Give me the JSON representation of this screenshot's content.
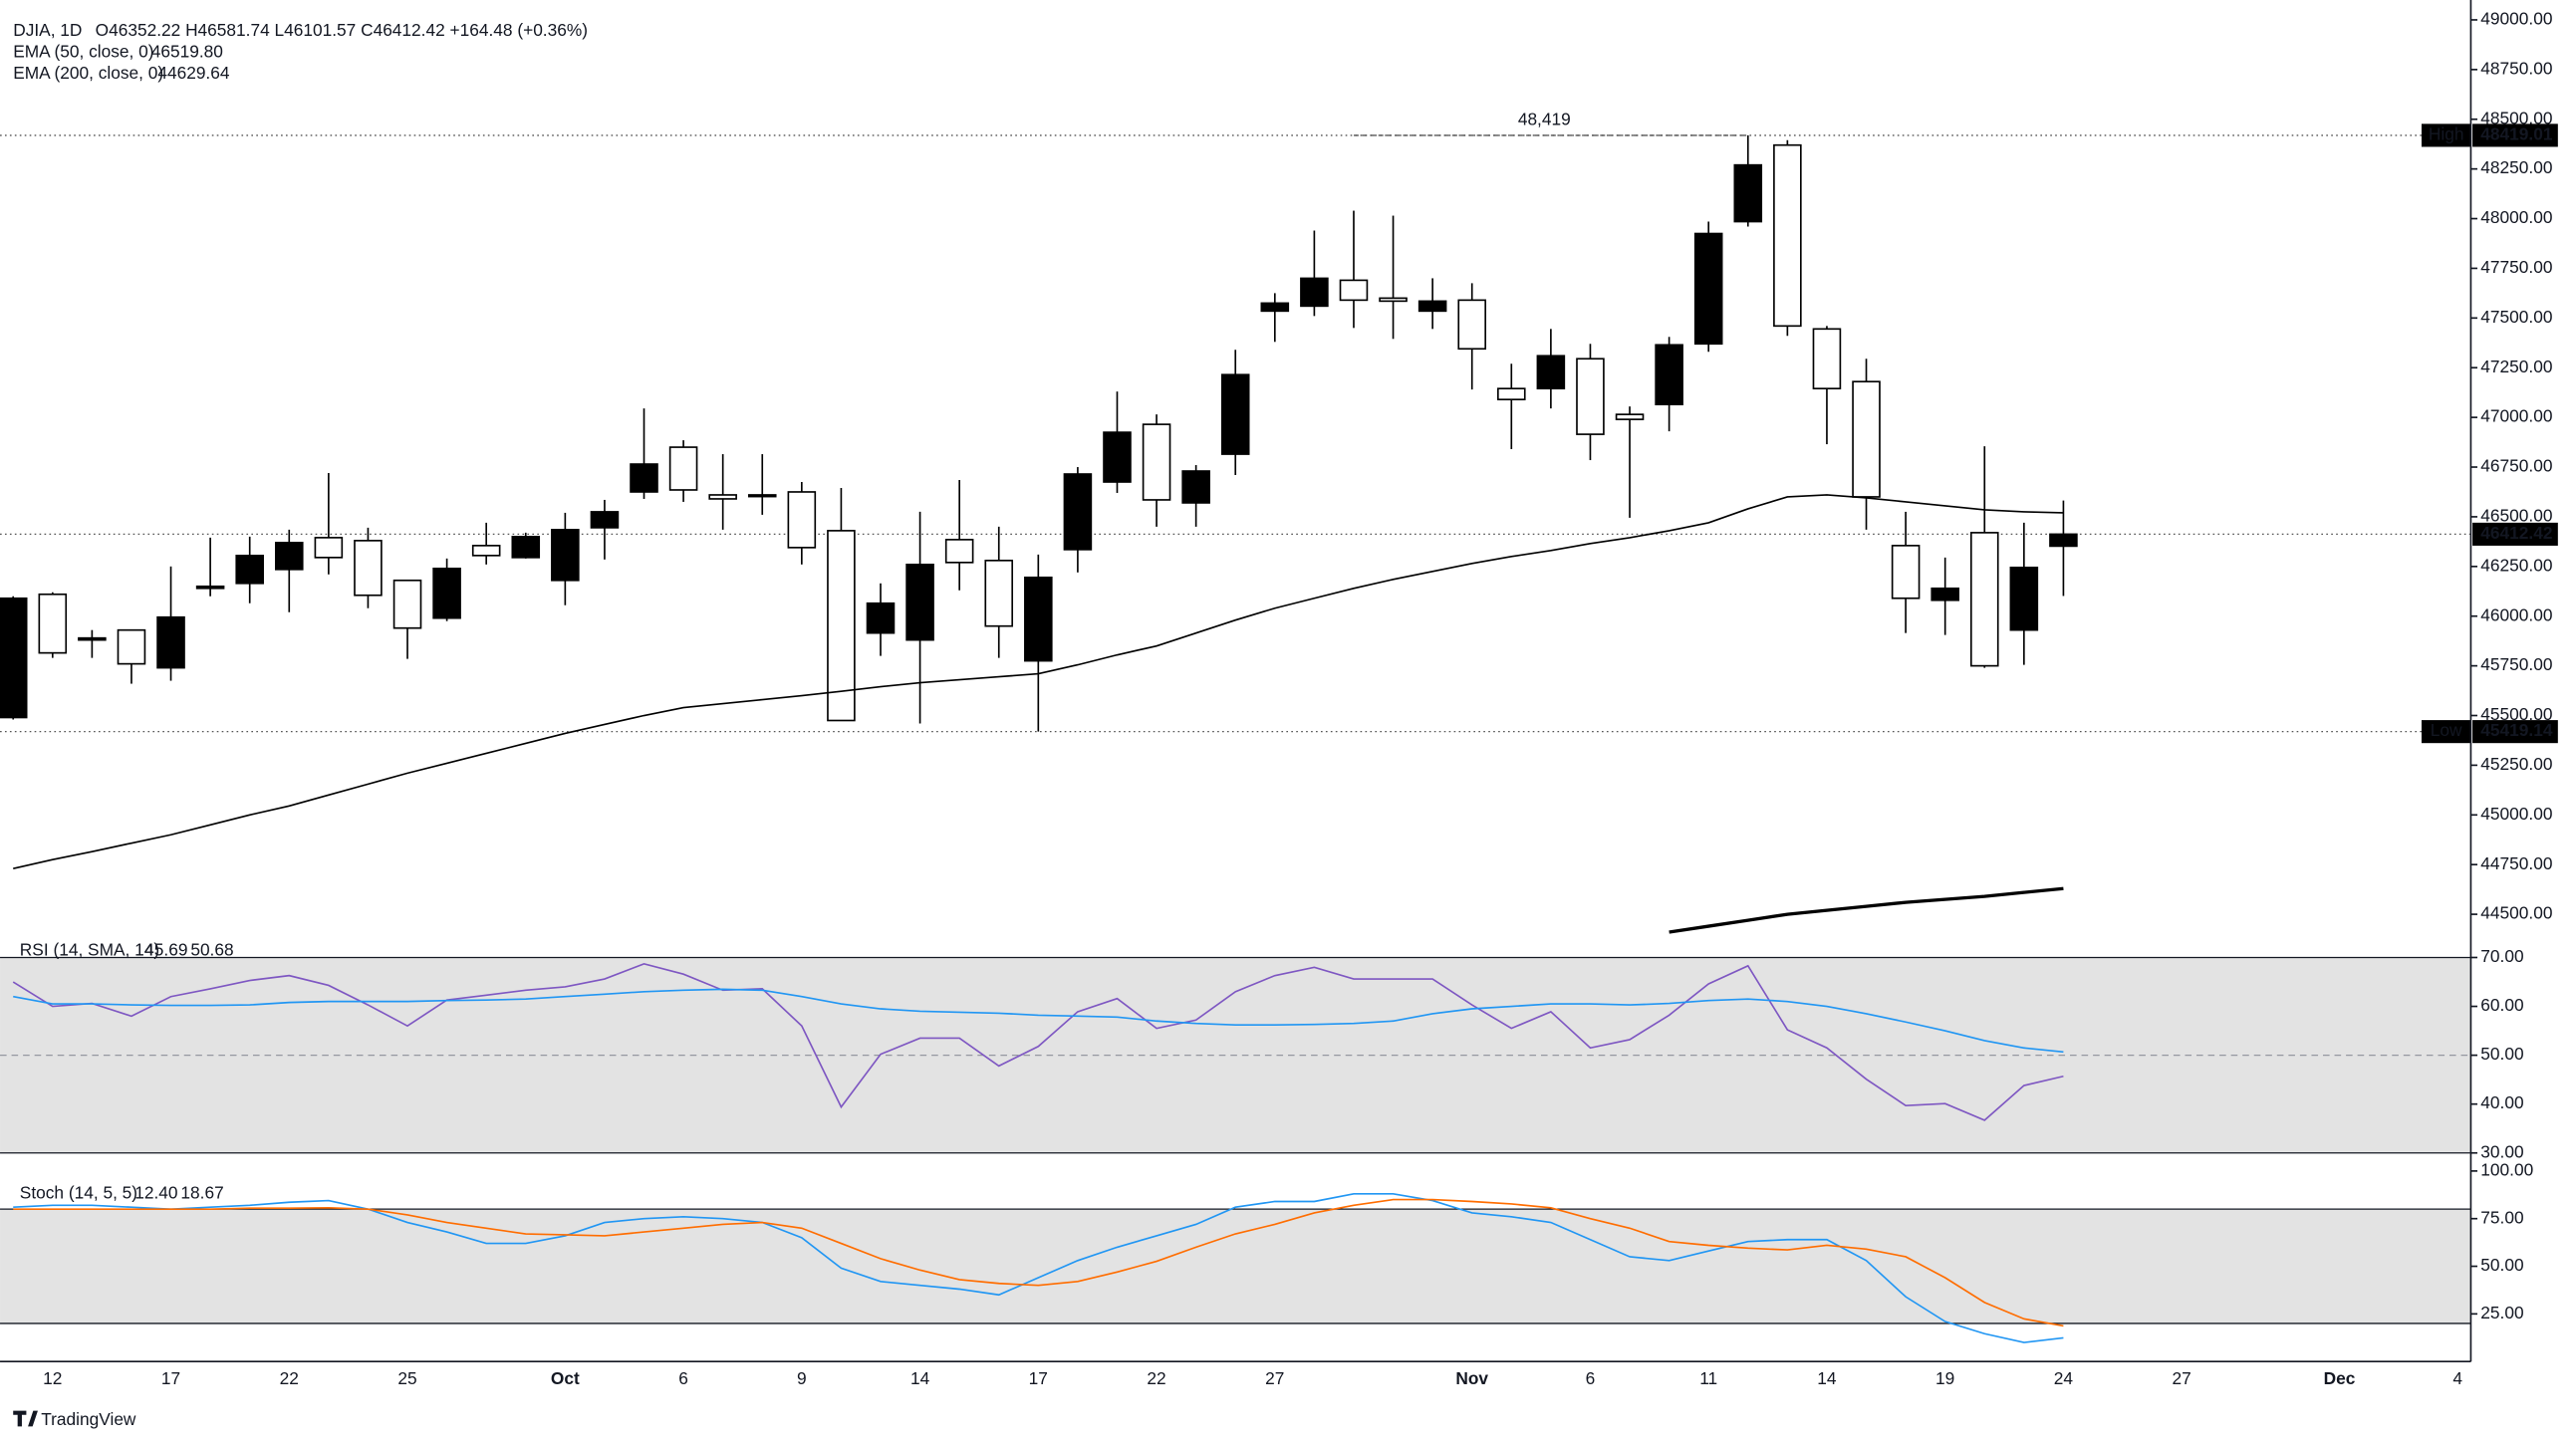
{
  "chart_data": [
    {
      "type": "candlestick",
      "title": "DJIA, 1D",
      "quote": "O46352.22 H46581.74 L46101.57 C46412.42 +164.48 (+0.36%)",
      "categories": [
        null,
        "12",
        null,
        null,
        "17",
        null,
        null,
        "22",
        null,
        null,
        "25",
        null,
        null,
        null,
        "Oct",
        null,
        null,
        "6",
        null,
        null,
        "9",
        null,
        null,
        "14",
        null,
        null,
        "17",
        null,
        null,
        "22",
        null,
        null,
        "27",
        null,
        null,
        null,
        null,
        "Nov",
        null,
        null,
        "6",
        null,
        null,
        "11",
        null,
        null,
        "14",
        null,
        null,
        "19",
        null,
        null,
        "24",
        null,
        null,
        "27",
        null,
        null,
        null,
        "Dec",
        null,
        null,
        "4"
      ],
      "open": [
        45490,
        46110,
        45880,
        45930,
        45740,
        46140,
        46165,
        46235,
        46395,
        46380,
        46180,
        45990,
        46355,
        46295,
        46180,
        46445,
        46625,
        46850,
        46610,
        46610,
        46625,
        46430,
        45915,
        45880,
        46385,
        46280,
        45775,
        46335,
        46675,
        46965,
        46570,
        46815,
        47535,
        47560,
        47690,
        47600,
        47535,
        47590,
        47145,
        47145,
        47295,
        47015,
        47065,
        47370,
        47985,
        48370,
        47445,
        47180,
        46355,
        46080,
        46420,
        45930,
        46352.22,
        null,
        null,
        null,
        null,
        null,
        null,
        null,
        null,
        null,
        null
      ],
      "high": [
        46100,
        46120,
        45930,
        45930,
        46250,
        46395,
        46400,
        46435,
        46720,
        46445,
        46180,
        46290,
        46470,
        46420,
        46520,
        46585,
        47045,
        46885,
        46815,
        46815,
        46675,
        46645,
        46165,
        46525,
        46685,
        46450,
        46310,
        46750,
        47130,
        47015,
        46760,
        47340,
        47625,
        47940,
        48040,
        48015,
        47700,
        47675,
        47270,
        47445,
        47370,
        47055,
        47405,
        47985,
        48419.01,
        48395,
        47460,
        47295,
        46525,
        46295,
        46855,
        46470,
        46581.74,
        null,
        null,
        null,
        null,
        null,
        null,
        null,
        null,
        null,
        null
      ],
      "low": [
        45480,
        45790,
        45790,
        45660,
        45675,
        46100,
        46065,
        46020,
        46210,
        46040,
        45785,
        45975,
        46260,
        46290,
        46055,
        46285,
        46590,
        46575,
        46435,
        46510,
        46260,
        45475,
        45800,
        45460,
        46130,
        45790,
        45419.14,
        46220,
        46620,
        46450,
        46450,
        46710,
        47380,
        47510,
        47450,
        47395,
        47445,
        47140,
        46840,
        47045,
        46785,
        46495,
        46930,
        47330,
        47960,
        47410,
        46865,
        46435,
        45915,
        45905,
        45740,
        45755,
        46101.57,
        null,
        null,
        null,
        null,
        null,
        null,
        null,
        null,
        null,
        null
      ],
      "close": [
        46090,
        45815,
        45890,
        45760,
        45995,
        46150,
        46305,
        46370,
        46295,
        46105,
        45940,
        46240,
        46305,
        46400,
        46435,
        46525,
        46765,
        46635,
        46590,
        46605,
        46345,
        45475,
        46065,
        46260,
        46270,
        45950,
        46195,
        46715,
        46925,
        46585,
        46730,
        47215,
        47575,
        47700,
        47590,
        47585,
        47585,
        47345,
        47090,
        47310,
        46915,
        46990,
        47365,
        47925,
        48270,
        47460,
        47145,
        46600,
        46090,
        46140,
        45750,
        46245,
        46412.42,
        null,
        null,
        null,
        null,
        null,
        null,
        null,
        null,
        null,
        null
      ],
      "up_color": "#000000",
      "down_color": "#ffffff",
      "series": [
        {
          "name": "EMA (50, close, 0)",
          "legend_value": "46519.80",
          "color": "#000000",
          "width": 1,
          "values": [
            44730,
            44775,
            44815,
            44858,
            44900,
            44950,
            45000,
            45045,
            45100,
            45155,
            45210,
            45260,
            45310,
            45360,
            45410,
            45455,
            45500,
            45540,
            45560,
            45580,
            45600,
            45622,
            45645,
            45665,
            45680,
            45695,
            45710,
            45755,
            45805,
            45850,
            45915,
            45980,
            46040,
            46090,
            46140,
            46185,
            46225,
            46265,
            46300,
            46330,
            46365,
            46395,
            46430,
            46470,
            46540,
            46600,
            46610,
            46595,
            46575,
            46555,
            46535,
            46525,
            46519.8,
            null,
            null,
            null,
            null,
            null,
            null,
            null,
            null,
            null,
            null
          ]
        },
        {
          "name": "EMA (200, close, 0)",
          "legend_value": "44629.64",
          "color": "#000000",
          "width": 2,
          "values": [
            null,
            null,
            null,
            null,
            null,
            null,
            null,
            null,
            null,
            null,
            null,
            null,
            null,
            null,
            null,
            null,
            null,
            null,
            null,
            null,
            null,
            null,
            null,
            null,
            null,
            null,
            null,
            null,
            null,
            null,
            null,
            null,
            null,
            null,
            null,
            null,
            null,
            null,
            null,
            null,
            null,
            null,
            44410,
            44440,
            44470,
            44500,
            44520,
            44540,
            44560,
            44575,
            44590,
            44610,
            44629.64,
            null,
            null,
            null,
            null,
            null,
            null,
            null,
            null,
            null,
            null
          ]
        }
      ],
      "ylim": [
        44390,
        49100
      ],
      "yticks": [
        {
          "value": 44500,
          "label": "44500.00"
        },
        {
          "value": 44750,
          "label": "44750.00"
        },
        {
          "value": 45000,
          "label": "45000.00"
        },
        {
          "value": 45250,
          "label": "45250.00"
        },
        {
          "value": 45500,
          "label": "45500.00"
        },
        {
          "value": 45750,
          "label": "45750.00"
        },
        {
          "value": 46000,
          "label": "46000.00"
        },
        {
          "value": 46250,
          "label": "46250.00"
        },
        {
          "value": 46500,
          "label": "46500.00"
        },
        {
          "value": 46750,
          "label": "46750.00"
        },
        {
          "value": 47000,
          "label": "47000.00"
        },
        {
          "value": 47250,
          "label": "47250.00"
        },
        {
          "value": 47500,
          "label": "47500.00"
        },
        {
          "value": 47750,
          "label": "47750.00"
        },
        {
          "value": 48000,
          "label": "48000.00"
        },
        {
          "value": 48250,
          "label": "48250.00"
        },
        {
          "value": 48500,
          "label": "48500.00"
        },
        {
          "value": 48750,
          "label": "48750.00"
        },
        {
          "value": 49000,
          "label": "49000.00"
        }
      ],
      "markers": [
        {
          "label": "High",
          "value": 48419.01
        },
        {
          "value": 46412.42
        },
        {
          "label": "Low",
          "value": 45419.14
        }
      ],
      "annotation": "48,419"
    },
    {
      "type": "line",
      "title": "RSI (14, SMA, 14)",
      "series": [
        {
          "legend_value": "45.69",
          "color": "#7e57c2",
          "values": [
            65,
            60,
            60.6,
            58,
            62,
            63.6,
            65.3,
            66.3,
            64.3,
            60.3,
            56,
            61.3,
            62.3,
            63.3,
            64,
            65.6,
            68.7,
            66.6,
            63.3,
            63.6,
            56,
            39.4,
            50.2,
            53.5,
            53.5,
            47.8,
            51.8,
            58.9,
            61.6,
            55.5,
            57.2,
            63,
            66.3,
            68,
            65.6,
            65.6,
            65.6,
            60.3,
            55.5,
            58.9,
            51.5,
            53.2,
            58.2,
            64.6,
            68.3,
            55.2,
            51.5,
            45.1,
            39.7,
            40.1,
            36.7,
            43.8,
            45.69
          ]
        },
        {
          "legend_value": "50.68",
          "color": "#2196f3",
          "values": [
            62,
            60.5,
            60.5,
            60.3,
            60.2,
            60.2,
            60.3,
            60.8,
            61,
            61,
            61,
            61.2,
            61.3,
            61.5,
            62,
            62.5,
            63,
            63.3,
            63.5,
            63.3,
            62,
            60.5,
            59.5,
            59,
            58.8,
            58.6,
            58.2,
            58,
            57.8,
            57,
            56.5,
            56.2,
            56.2,
            56.3,
            56.5,
            57,
            58.5,
            59.5,
            60,
            60.5,
            60.5,
            60.3,
            60.6,
            61.2,
            61.5,
            61,
            60,
            58.5,
            56.8,
            55,
            53,
            51.5,
            50.68
          ]
        }
      ],
      "ylim": [
        30,
        70
      ],
      "yticks": [
        {
          "value": 30,
          "label": "30.00"
        },
        {
          "value": 40,
          "label": "40.00"
        },
        {
          "value": 50,
          "label": "50.00"
        },
        {
          "value": 60,
          "label": "60.00"
        },
        {
          "value": 70,
          "label": "70.00"
        }
      ],
      "band": [
        30,
        70
      ],
      "midline": 50
    },
    {
      "type": "line",
      "title": "Stoch (14, 5, 5)",
      "series": [
        {
          "legend_value": "12.40",
          "color": "#2196f3",
          "values": [
            81,
            82,
            82,
            81,
            80,
            81,
            82,
            83.6,
            84.5,
            80,
            73,
            68,
            62,
            62,
            66,
            73,
            75,
            76,
            75,
            73,
            65,
            49,
            42,
            40,
            38,
            35,
            44,
            53,
            60,
            66,
            72,
            81,
            84,
            84,
            88,
            88,
            84.5,
            78,
            76,
            73,
            64,
            55,
            53,
            58,
            63,
            64,
            64,
            53,
            34,
            21,
            14.6,
            10,
            12.4
          ]
        },
        {
          "legend_value": "18.67",
          "color": "#ff6d00",
          "values": [
            80,
            80,
            80,
            80,
            80,
            80,
            80.5,
            80.5,
            80.7,
            80,
            77,
            73,
            70,
            67,
            66.5,
            66,
            68,
            70,
            72,
            73,
            70,
            62,
            54,
            48,
            43,
            41,
            40,
            42,
            47,
            52.6,
            60,
            67,
            72,
            78,
            82,
            85,
            85,
            84,
            82.7,
            80.7,
            75,
            70,
            63,
            61,
            59.5,
            58.6,
            61,
            59,
            55,
            44,
            31,
            22.4,
            18.67
          ]
        }
      ],
      "ylim": [
        0,
        100
      ],
      "yticks": [
        {
          "value": 25,
          "label": "25.00"
        },
        {
          "value": 50,
          "label": "50.00"
        },
        {
          "value": 75,
          "label": "75.00"
        },
        {
          "value": 100,
          "label": "100.00"
        }
      ],
      "band": [
        20,
        80
      ]
    }
  ],
  "footer": {
    "brand": "TradingView"
  }
}
